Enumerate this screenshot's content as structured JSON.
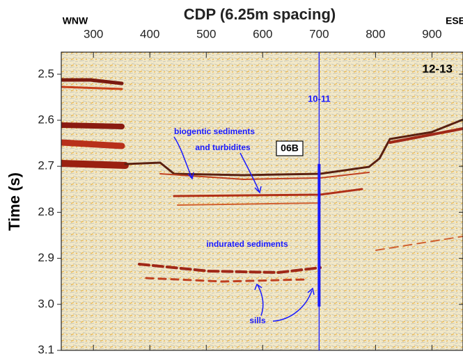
{
  "chart_data": {
    "type": "seismic",
    "title": "CDP (6.25m spacing)",
    "y_label": "Time (s)",
    "left_direction": "WNW",
    "right_direction": "ESE",
    "line_label": "12-13",
    "xlim": [
      243,
      955
    ],
    "xticks": [
      300,
      400,
      500,
      600,
      700,
      800,
      900
    ],
    "ylim": [
      3.1,
      2.452
    ],
    "yticks": [
      2.5,
      2.6,
      2.7,
      2.8,
      2.9,
      {
        "value": 3,
        "label": "3.0"
      },
      3.1
    ],
    "crossing_line": {
      "label": "10-11",
      "x": 700,
      "color": "#1a1aff"
    },
    "borehole": {
      "label": "06B",
      "x": 700,
      "top": 2.695,
      "bottom": 3.005,
      "color": "#1a1aff"
    },
    "annotations": {
      "biogenic_line1": "biogentic sediments",
      "biogenic_line2": "and turbidites",
      "indurated": "indurated sediments",
      "sills": "sills"
    }
  }
}
